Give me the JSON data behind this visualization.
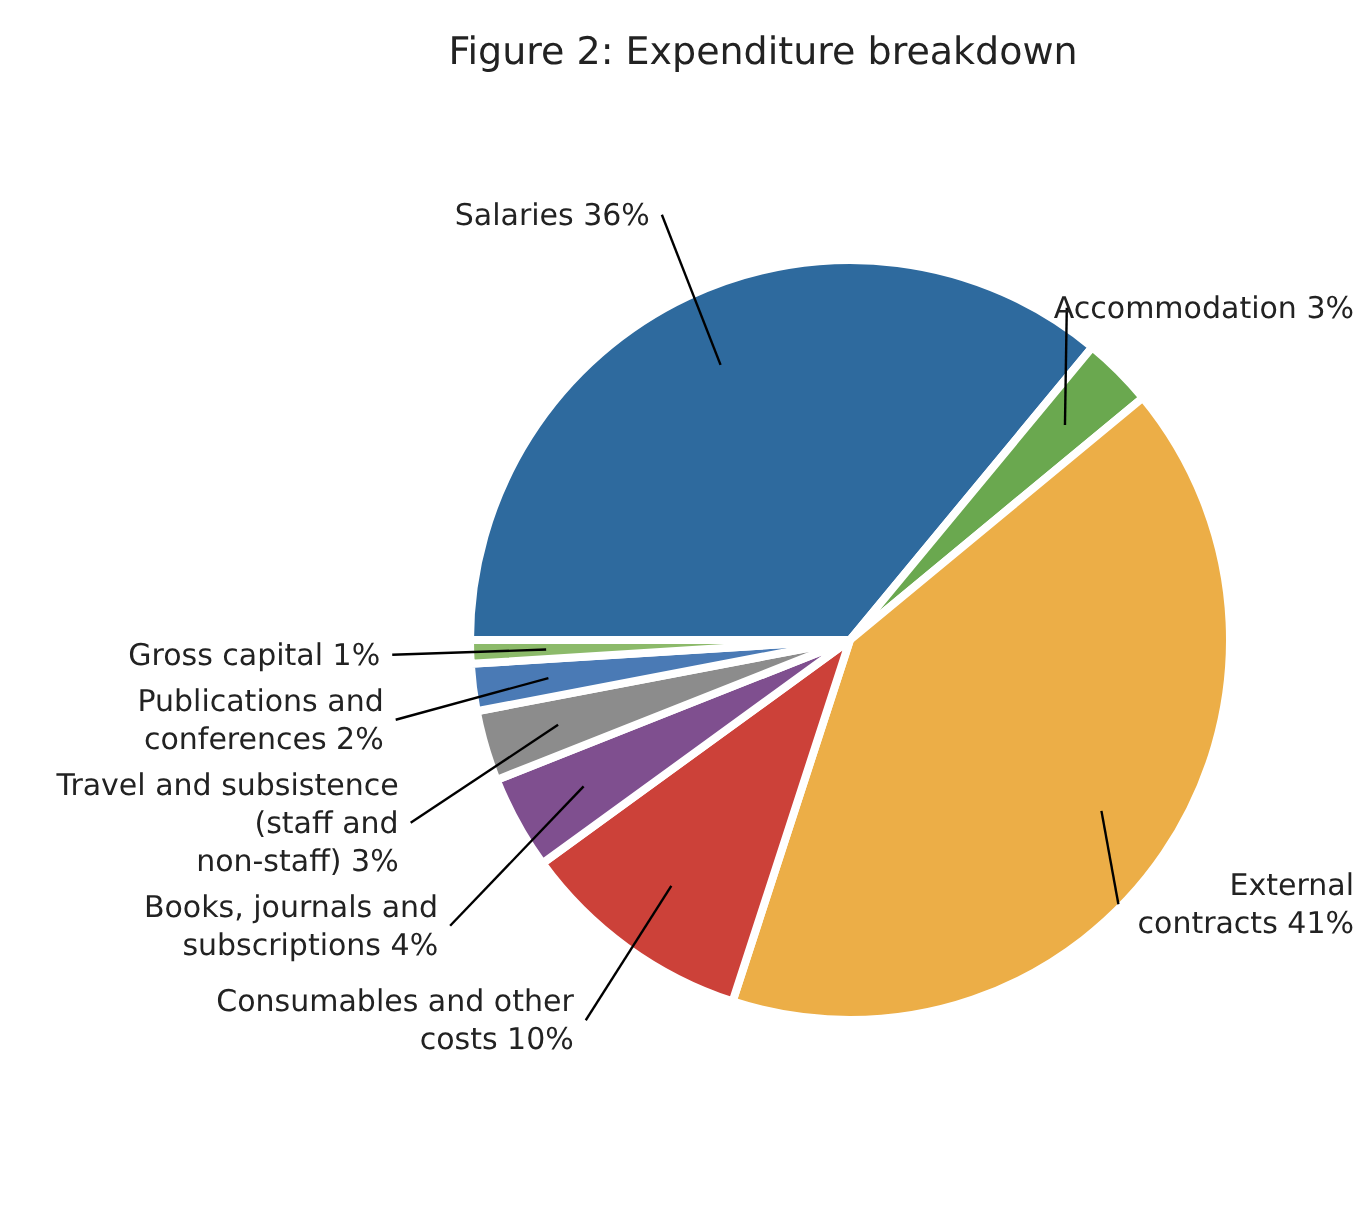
{
  "chart_data": {
    "type": "pie",
    "title": "Figure 2: Expenditure breakdown",
    "categories": [
      "Salaries",
      "Accommodation",
      "External contracts",
      "Consumables and other costs",
      "Books, journals and subscriptions",
      "Travel and subsistence (staff and non-staff)",
      "Publications and conferences",
      "Gross capital"
    ],
    "values": [
      36,
      3,
      41,
      10,
      4,
      3,
      2,
      1
    ],
    "value_labels": [
      "36%",
      "3%",
      "41%",
      "10%",
      "4%",
      "3%",
      "2%",
      "1%"
    ],
    "colors": [
      "#2e6a9e",
      "#6aa84f",
      "#ecae47",
      "#cc4139",
      "#7f4f8f",
      "#8c8c8c",
      "#4a7ab5",
      "#8cba6a"
    ],
    "legend": false
  }
}
